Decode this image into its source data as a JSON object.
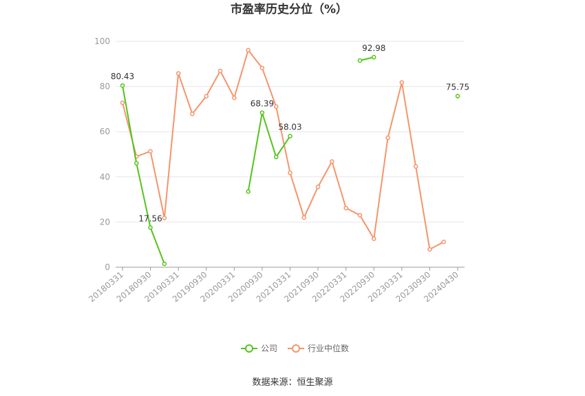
{
  "chart_data": {
    "type": "line",
    "title": "市盈率历史分位（%）",
    "source": "数据来源：恒生聚源",
    "xlabel": "",
    "ylabel": "",
    "ylim": [
      0,
      100
    ],
    "yticks": [
      0,
      20,
      40,
      60,
      80,
      100
    ],
    "grid": true,
    "legend_position": "bottom",
    "x": [
      "20180331",
      "20180630",
      "20180930",
      "20181231",
      "20190331",
      "20190630",
      "20190930",
      "20191231",
      "20200331",
      "20200630",
      "20200930",
      "20201231",
      "20210331",
      "20210630",
      "20210930",
      "20211231",
      "20220331",
      "20220630",
      "20220930",
      "20221231",
      "20230331",
      "20230630",
      "20230930",
      "20231231",
      "20240430"
    ],
    "x_tick_labels": [
      "20180331",
      "20180930",
      "20190331",
      "20190930",
      "20200331",
      "20200930",
      "20210331",
      "20210930",
      "20220331",
      "20220930",
      "20230331",
      "20230930",
      "20240430"
    ],
    "series": [
      {
        "name": "公司",
        "color": "#52c41a",
        "values": [
          80.43,
          46.0,
          17.56,
          1.5,
          null,
          null,
          null,
          null,
          null,
          33.5,
          68.39,
          48.8,
          58.03,
          null,
          null,
          null,
          null,
          91.5,
          92.98,
          null,
          null,
          null,
          null,
          null,
          75.75
        ],
        "labels": [
          {
            "index": 0,
            "text": "80.43"
          },
          {
            "index": 2,
            "text": "17.56"
          },
          {
            "index": 10,
            "text": "68.39"
          },
          {
            "index": 12,
            "text": "58.03"
          },
          {
            "index": 18,
            "text": "92.98"
          },
          {
            "index": 24,
            "text": "75.75"
          }
        ]
      },
      {
        "name": "行业中位数",
        "color": "#f5946a",
        "values": [
          72.8,
          49.0,
          51.3,
          21.8,
          85.8,
          67.9,
          75.7,
          86.9,
          75.0,
          96.1,
          88.2,
          71.1,
          41.8,
          22.0,
          35.6,
          46.8,
          26.2,
          23.0,
          12.6,
          57.3,
          81.8,
          44.6,
          7.9,
          11.2,
          null
        ]
      }
    ]
  }
}
